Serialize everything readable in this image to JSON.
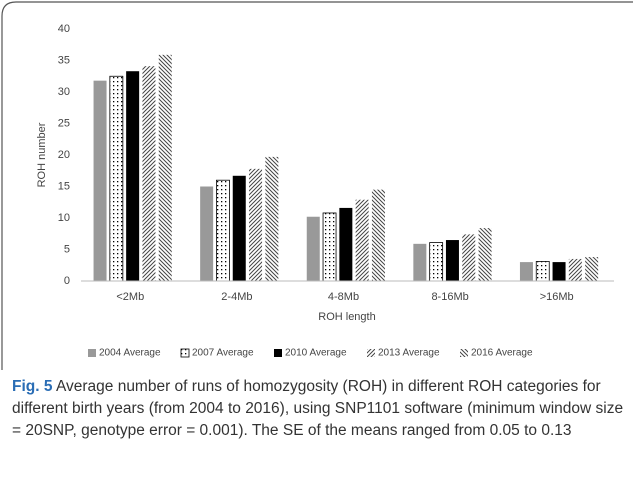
{
  "chart_data": {
    "type": "bar",
    "categories": [
      "<2Mb",
      "2-4Mb",
      "4-8Mb",
      "8-16Mb",
      ">16Mb"
    ],
    "series": [
      {
        "name": "2004 Average",
        "color": "#999999",
        "pattern": "solid",
        "values": [
          31.8,
          15.0,
          10.2,
          5.9,
          3.0
        ]
      },
      {
        "name": "2007 Average",
        "color": "#000000",
        "pattern": "dots",
        "values": [
          32.5,
          16.0,
          10.8,
          6.1,
          3.1
        ]
      },
      {
        "name": "2010 Average",
        "color": "#000000",
        "pattern": "solid",
        "values": [
          33.3,
          16.7,
          11.6,
          6.5,
          3.0
        ]
      },
      {
        "name": "2013 Average",
        "color": "#444444",
        "pattern": "forward-hatch",
        "values": [
          34.1,
          17.8,
          12.9,
          7.4,
          3.5
        ]
      },
      {
        "name": "2016 Average",
        "color": "#444444",
        "pattern": "back-hatch",
        "values": [
          35.9,
          19.7,
          14.5,
          8.4,
          3.8
        ]
      }
    ],
    "ylim": [
      0,
      40
    ],
    "yticks": [
      0,
      5,
      10,
      15,
      20,
      25,
      30,
      35,
      40
    ],
    "ylabel": "ROH number",
    "xlabel": "ROH length",
    "grid": false,
    "legend": "bottom"
  },
  "caption": {
    "label": "Fig. 5",
    "text": "Average number of runs of homozygosity (ROH) in different ROH categories for different birth years (from 2004 to 2016), using SNP1101 software (minimum window size = 20SNP, genotype error = 0.001). The SE of the means ranged from 0.05 to 0.13"
  }
}
